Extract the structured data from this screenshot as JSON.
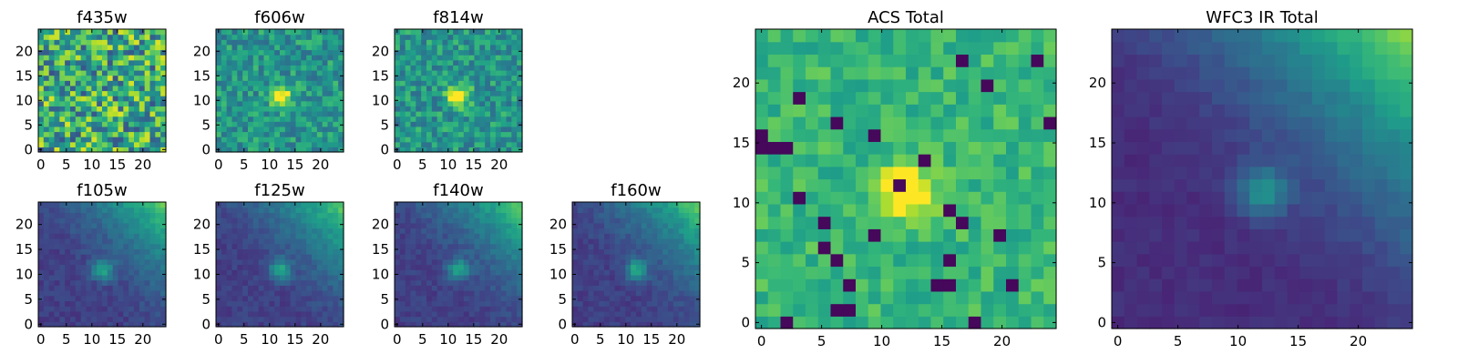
{
  "figure": {
    "background": "#ffffff"
  },
  "chart_data": [
    {
      "type": "heatmap",
      "title": "f435w",
      "variant": "noise",
      "seed": 11,
      "grid": [
        24,
        24
      ],
      "xlim": [
        0,
        24
      ],
      "ylim": [
        0,
        24
      ],
      "xticks": [
        0,
        5,
        10,
        15,
        20
      ],
      "yticks": [
        0,
        5,
        10,
        15,
        20
      ]
    },
    {
      "type": "heatmap",
      "title": "f606w",
      "variant": "source",
      "seed": 23,
      "grid": [
        24,
        24
      ],
      "xlim": [
        0,
        24
      ],
      "ylim": [
        0,
        24
      ],
      "xticks": [
        0,
        5,
        10,
        15,
        20
      ],
      "yticks": [
        0,
        5,
        10,
        15,
        20
      ]
    },
    {
      "type": "heatmap",
      "title": "f814w",
      "variant": "source",
      "seed": 37,
      "grid": [
        24,
        24
      ],
      "xlim": [
        0,
        24
      ],
      "ylim": [
        0,
        24
      ],
      "xticks": [
        0,
        5,
        10,
        15,
        20
      ],
      "yticks": [
        0,
        5,
        10,
        15,
        20
      ]
    },
    {
      "type": "heatmap",
      "title": "f105w",
      "variant": "ir",
      "seed": 41,
      "grid": [
        24,
        24
      ],
      "xlim": [
        0,
        24
      ],
      "ylim": [
        0,
        24
      ],
      "xticks": [
        0,
        5,
        10,
        15,
        20
      ],
      "yticks": [
        0,
        5,
        10,
        15,
        20
      ]
    },
    {
      "type": "heatmap",
      "title": "f125w",
      "variant": "ir",
      "seed": 53,
      "grid": [
        24,
        24
      ],
      "xlim": [
        0,
        24
      ],
      "ylim": [
        0,
        24
      ],
      "xticks": [
        0,
        5,
        10,
        15,
        20
      ],
      "yticks": [
        0,
        5,
        10,
        15,
        20
      ]
    },
    {
      "type": "heatmap",
      "title": "f140w",
      "variant": "ir",
      "seed": 67,
      "grid": [
        24,
        24
      ],
      "xlim": [
        0,
        24
      ],
      "ylim": [
        0,
        24
      ],
      "xticks": [
        0,
        5,
        10,
        15,
        20
      ],
      "yticks": [
        0,
        5,
        10,
        15,
        20
      ]
    },
    {
      "type": "heatmap",
      "title": "f160w",
      "variant": "ir",
      "seed": 71,
      "grid": [
        24,
        24
      ],
      "xlim": [
        0,
        24
      ],
      "ylim": [
        0,
        24
      ],
      "xticks": [
        0,
        5,
        10,
        15,
        20
      ],
      "yticks": [
        0,
        5,
        10,
        15,
        20
      ]
    },
    {
      "type": "heatmap",
      "title": "ACS Total",
      "variant": "acs_total",
      "seed": 83,
      "grid": [
        24,
        24
      ],
      "xlim": [
        0,
        24
      ],
      "ylim": [
        0,
        24
      ],
      "xticks": [
        0,
        5,
        10,
        15,
        20
      ],
      "yticks": [
        0,
        5,
        10,
        15,
        20
      ]
    },
    {
      "type": "heatmap",
      "title": "WFC3 IR Total",
      "variant": "ir_total",
      "seed": 97,
      "grid": [
        24,
        24
      ],
      "xlim": [
        0,
        24
      ],
      "ylim": [
        0,
        24
      ],
      "xticks": [
        0,
        5,
        10,
        15,
        20
      ],
      "yticks": [
        0,
        5,
        10,
        15,
        20
      ]
    }
  ],
  "colormap": [
    "#440154",
    "#482878",
    "#3e4989",
    "#31688e",
    "#26828e",
    "#1f9e89",
    "#35b779",
    "#6ece58",
    "#b5de2b",
    "#fde725"
  ]
}
